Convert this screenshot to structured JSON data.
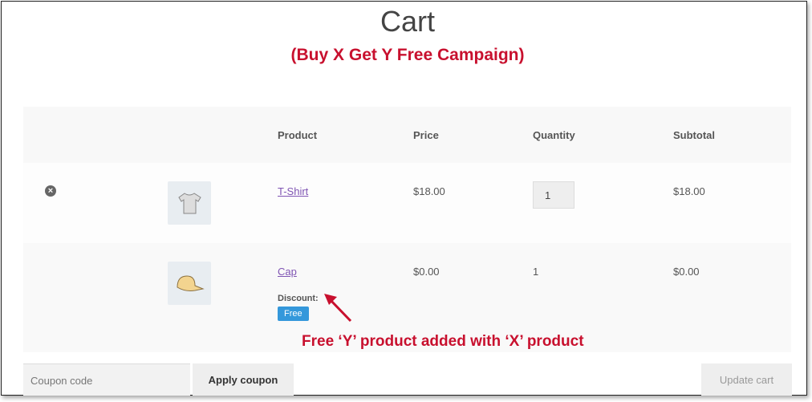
{
  "page": {
    "title": "Cart",
    "subtitle": "(Buy X Get Y Free Campaign)"
  },
  "table": {
    "headers": [
      "Product",
      "Price",
      "Quantity",
      "Subtotal"
    ],
    "rows": [
      {
        "product": "T-Shirt",
        "price": "$18.00",
        "quantity": "1",
        "subtotal": "$18.00",
        "thumb": "tshirt-image",
        "removable": true
      },
      {
        "product": "Cap",
        "price": "$0.00",
        "quantity": "1",
        "subtotal": "$0.00",
        "thumb": "cap-image",
        "discount_label": "Discount:",
        "discount_badge": "Free"
      }
    ]
  },
  "annotation": {
    "text": "Free ‘Y’ product added with ‘X’ product",
    "color": "#c8102e"
  },
  "actions": {
    "coupon_placeholder": "Coupon code",
    "apply_label": "Apply coupon",
    "update_label": "Update cart"
  }
}
